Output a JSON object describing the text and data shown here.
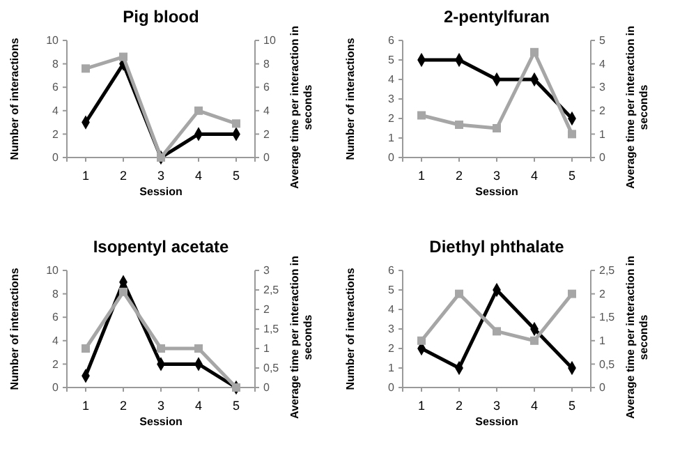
{
  "chart_data": [
    {
      "type": "line",
      "title": "Pig blood",
      "xlabel": "Session",
      "ylabel": "Number of interactions",
      "y2label": "Average time per interaction in seconds",
      "categories": [
        "1",
        "2",
        "3",
        "4",
        "5"
      ],
      "ylim": [
        0,
        10
      ],
      "yticks": [
        0,
        2,
        4,
        6,
        8,
        10
      ],
      "y2lim": [
        0,
        10
      ],
      "y2ticks": [
        0,
        2,
        4,
        6,
        8,
        10
      ],
      "series": [
        {
          "color": "#000000",
          "marker": "diamond",
          "values": [
            3,
            8,
            0,
            2,
            2
          ]
        },
        {
          "color": "#a6a6a6",
          "marker": "square",
          "axis": "y2",
          "values": [
            7.6,
            8.6,
            0,
            4,
            2.9
          ]
        }
      ]
    },
    {
      "type": "line",
      "title": "2-pentylfuran",
      "xlabel": "Session",
      "ylabel": "Number of interactions",
      "y2label": "Average time per interaction in seconds",
      "categories": [
        "1",
        "2",
        "3",
        "4",
        "5"
      ],
      "ylim": [
        0,
        6
      ],
      "yticks": [
        0,
        1,
        2,
        3,
        4,
        5,
        6
      ],
      "y2lim": [
        0,
        5
      ],
      "y2ticks": [
        0,
        1,
        2,
        3,
        4,
        5
      ],
      "series": [
        {
          "color": "#000000",
          "marker": "diamond",
          "values": [
            5,
            5,
            4,
            4,
            2
          ]
        },
        {
          "color": "#a6a6a6",
          "marker": "square",
          "axis": "y2",
          "values": [
            1.8,
            1.4,
            1.25,
            4.5,
            1
          ]
        }
      ]
    },
    {
      "type": "line",
      "title": "Isopentyl acetate",
      "xlabel": "Session",
      "ylabel": "Number of interactions",
      "y2label": "Average time per interaction in seconds",
      "categories": [
        "1",
        "2",
        "3",
        "4",
        "5"
      ],
      "ylim": [
        0,
        10
      ],
      "yticks": [
        0,
        2,
        4,
        6,
        8,
        10
      ],
      "y2lim": [
        0,
        3
      ],
      "y2ticks": [
        0,
        {
          "value": 0.5,
          "label": "0,5"
        },
        1,
        {
          "value": 1.5,
          "label": "1,5"
        },
        2,
        {
          "value": 2.5,
          "label": "2,5"
        },
        3
      ],
      "series": [
        {
          "color": "#000000",
          "marker": "diamond",
          "values": [
            1,
            9,
            2,
            2,
            0
          ]
        },
        {
          "color": "#a6a6a6",
          "marker": "square",
          "axis": "y2",
          "values": [
            1,
            2.45,
            1,
            1,
            0
          ]
        }
      ]
    },
    {
      "type": "line",
      "title": "Diethyl phthalate",
      "xlabel": "Session",
      "ylabel": "Number of interactions",
      "y2label": "Average time per interaction in seconds",
      "categories": [
        "1",
        "2",
        "3",
        "4",
        "5"
      ],
      "ylim": [
        0,
        6
      ],
      "yticks": [
        0,
        1,
        2,
        3,
        4,
        5,
        6
      ],
      "y2lim": [
        0,
        2.5
      ],
      "y2ticks": [
        0,
        {
          "value": 0.5,
          "label": "0,5"
        },
        1,
        {
          "value": 1.5,
          "label": "1,5"
        },
        2,
        {
          "value": 2.5,
          "label": "2,5"
        }
      ],
      "series": [
        {
          "color": "#000000",
          "marker": "diamond",
          "values": [
            2,
            1,
            5,
            3,
            1
          ]
        },
        {
          "color": "#a6a6a6",
          "marker": "square",
          "axis": "y2",
          "values": [
            1,
            2,
            1.2,
            1,
            2
          ]
        }
      ]
    }
  ]
}
